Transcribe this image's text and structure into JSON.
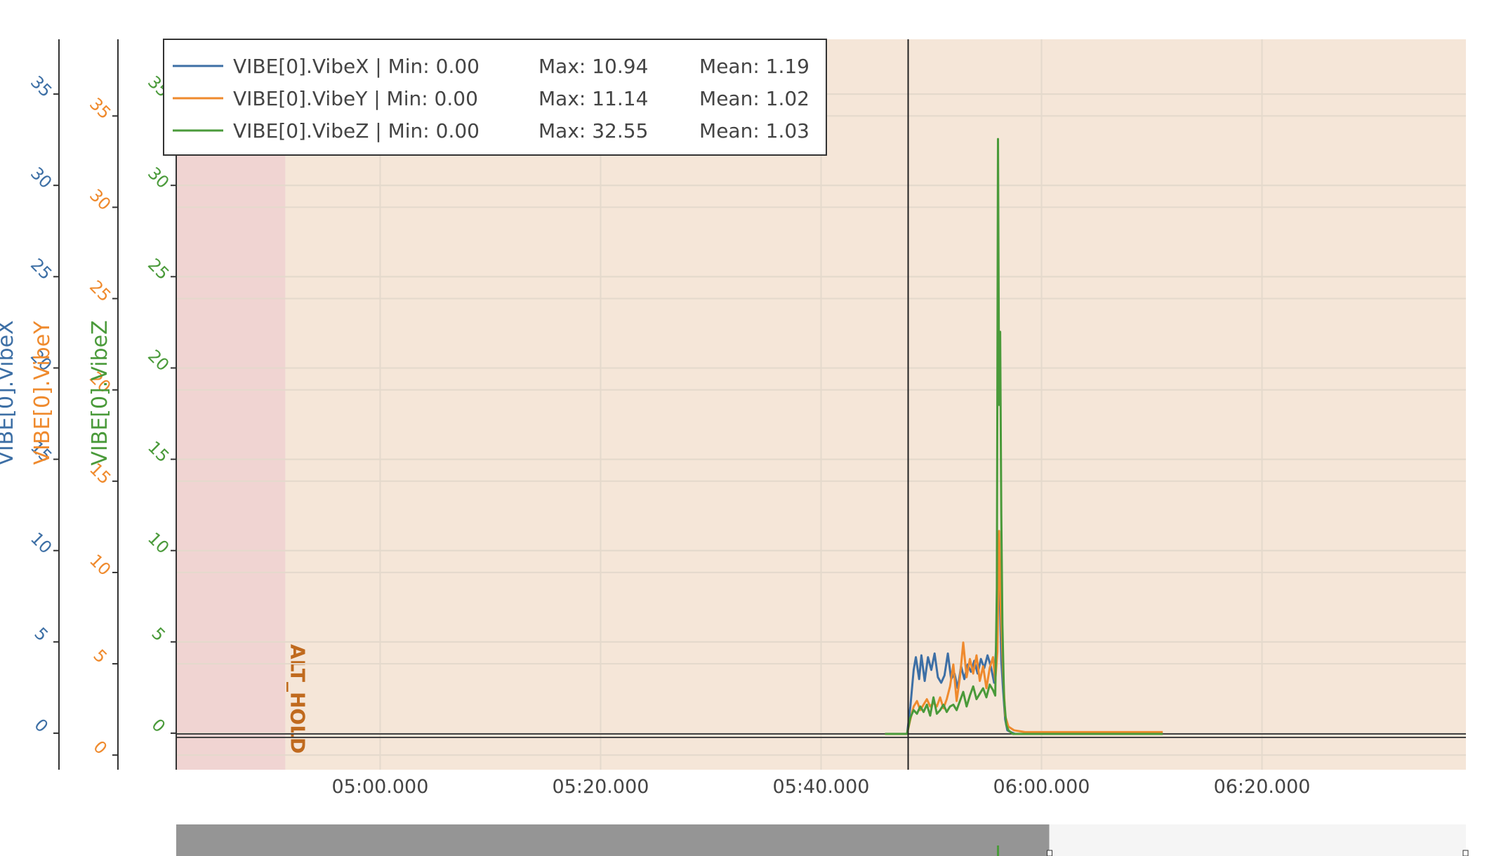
{
  "chart_data": {
    "type": "line",
    "x_range": [
      "04:41.500",
      "06:38.500"
    ],
    "x_ticks": [
      "05:00.000",
      "05:20.000",
      "05:40.000",
      "06:00.000",
      "06:20.000"
    ],
    "cursor_x": "05:47.900",
    "y_axes": [
      {
        "title": "VIBE[0].VibeX",
        "color": "#3d6fa5",
        "range": [
          -2.0,
          38.0
        ],
        "ticks": [
          "0",
          "5",
          "10",
          "15",
          "20",
          "25",
          "30",
          "35"
        ]
      },
      {
        "title": "VIBE[0].VibeY",
        "color": "#ef8a2d",
        "range": [
          -0.8,
          39.2
        ],
        "ticks": [
          "0",
          "5",
          "10",
          "15",
          "20",
          "25",
          "30",
          "35"
        ]
      },
      {
        "title": "VIBE[0].VibeZ",
        "color": "#4a9a3a",
        "range": [
          -2.0,
          38.0
        ],
        "ticks": [
          "0",
          "5",
          "10",
          "15",
          "20",
          "25",
          "30",
          "35"
        ]
      }
    ],
    "legend": [
      {
        "name": "VIBE[0].VibeX",
        "min": "Min: 0.00",
        "max": "Max: 10.94",
        "mean": "Mean: 1.19",
        "color": "#3d6fa5"
      },
      {
        "name": "VIBE[0].VibeY",
        "min": "Min: 0.00",
        "max": "Max: 11.14",
        "mean": "Mean: 1.02",
        "color": "#ef8a2d"
      },
      {
        "name": "VIBE[0].VibeZ",
        "min": "Min: 0.00",
        "max": "Max: 32.55",
        "mean": "Mean: 1.03",
        "color": "#4a9a3a"
      }
    ],
    "legend_position": "top-left",
    "grid": true,
    "mode_regions": [
      {
        "label": "",
        "start": "04:41.500",
        "end": "04:51.400",
        "color": "#f0d4d2"
      },
      {
        "label": "ALT_HOLD",
        "start": "04:51.400",
        "end": "06:38.500",
        "color": "#f5e6d8",
        "label_color": "#c06a1e"
      }
    ],
    "series": [
      {
        "name": "VIBE[0].VibeX",
        "color": "#3d6fa5",
        "x": [
          "05:45.800",
          "05:47.800",
          "05:48.100",
          "05:48.400",
          "05:48.600",
          "05:48.900",
          "05:49.100",
          "05:49.400",
          "05:49.700",
          "05:50.000",
          "05:50.300",
          "05:50.600",
          "05:50.900",
          "05:51.200",
          "05:51.500",
          "05:51.800",
          "05:52.100",
          "05:52.400",
          "05:52.700",
          "05:53.000",
          "05:53.300",
          "05:53.600",
          "05:53.900",
          "05:54.200",
          "05:54.500",
          "05:54.800",
          "05:55.100",
          "05:55.400",
          "05:55.700",
          "05:56.000",
          "05:56.100",
          "05:56.200",
          "05:56.350",
          "05:56.500",
          "05:56.700",
          "05:56.900",
          "05:57.200",
          "05:57.600",
          "05:58.500",
          "06:00.000",
          "06:03.000",
          "06:06.000",
          "06:11.000"
        ],
        "y": [
          0.0,
          0.0,
          1.5,
          3.5,
          4.2,
          3.0,
          4.3,
          2.9,
          4.2,
          3.5,
          4.4,
          3.1,
          2.8,
          3.2,
          4.4,
          3.0,
          3.3,
          2.5,
          3.7,
          3.0,
          3.8,
          3.4,
          4.0,
          3.3,
          4.1,
          3.6,
          4.3,
          3.7,
          2.8,
          6.0,
          10.9,
          8.0,
          4.0,
          2.5,
          0.8,
          0.2,
          0.1,
          0.0,
          0.0,
          0.0,
          0.0,
          0.0,
          0.0
        ]
      },
      {
        "name": "VIBE[0].VibeY",
        "color": "#ef8a2d",
        "x": [
          "05:45.800",
          "05:47.800",
          "05:48.100",
          "05:48.400",
          "05:48.700",
          "05:49.000",
          "05:49.300",
          "05:49.600",
          "05:49.900",
          "05:50.200",
          "05:50.500",
          "05:50.800",
          "05:51.100",
          "05:51.400",
          "05:51.700",
          "05:52.000",
          "05:52.300",
          "05:52.600",
          "05:52.900",
          "05:53.200",
          "05:53.500",
          "05:53.800",
          "05:54.100",
          "05:54.400",
          "05:54.700",
          "05:55.000",
          "05:55.300",
          "05:55.600",
          "05:55.800",
          "05:56.000",
          "05:56.150",
          "05:56.300",
          "05:56.500",
          "05:56.700",
          "05:57.000",
          "05:57.500",
          "05:58.500",
          "06:00.000",
          "06:05.000",
          "06:11.000"
        ],
        "y": [
          0.0,
          0.0,
          0.8,
          1.5,
          1.8,
          1.3,
          1.6,
          1.9,
          1.5,
          1.7,
          1.5,
          2.0,
          1.4,
          1.9,
          2.6,
          3.8,
          1.8,
          3.1,
          5.0,
          3.1,
          4.1,
          3.3,
          4.3,
          2.9,
          3.7,
          2.5,
          3.6,
          4.2,
          2.9,
          4.5,
          11.1,
          7.0,
          3.5,
          1.0,
          0.4,
          0.2,
          0.1,
          0.1,
          0.1,
          0.1
        ]
      },
      {
        "name": "VIBE[0].VibeZ",
        "color": "#4a9a3a",
        "x": [
          "05:45.800",
          "05:47.800",
          "05:48.100",
          "05:48.400",
          "05:48.700",
          "05:49.000",
          "05:49.300",
          "05:49.600",
          "05:49.900",
          "05:50.200",
          "05:50.500",
          "05:50.800",
          "05:51.100",
          "05:51.400",
          "05:51.700",
          "05:52.000",
          "05:52.300",
          "05:52.600",
          "05:52.900",
          "05:53.200",
          "05:53.500",
          "05:53.800",
          "05:54.100",
          "05:54.400",
          "05:54.700",
          "05:55.000",
          "05:55.300",
          "05:55.600",
          "05:55.800",
          "05:55.950",
          "05:56.050",
          "05:56.150",
          "05:56.250",
          "05:56.350",
          "05:56.450",
          "05:56.600",
          "05:56.800",
          "05:57.000",
          "05:57.400",
          "05:58.000",
          "06:00.000",
          "06:05.000",
          "06:11.000"
        ],
        "y": [
          0.0,
          0.0,
          0.9,
          1.3,
          1.1,
          1.5,
          1.2,
          1.6,
          1.0,
          2.0,
          1.1,
          1.3,
          1.6,
          1.2,
          1.5,
          1.6,
          1.3,
          1.8,
          2.3,
          1.5,
          2.1,
          2.6,
          1.9,
          2.2,
          2.5,
          2.0,
          2.7,
          2.4,
          2.1,
          8.0,
          32.55,
          18.0,
          22.0,
          12.0,
          6.0,
          2.0,
          0.5,
          0.2,
          0.0,
          0.0,
          0.0,
          0.0,
          0.0
        ]
      }
    ],
    "overview": {
      "selection_start": "04:41.500",
      "selection_end": "06:00.700",
      "spike_at": "05:56.050",
      "spike_color": "#4a9a3a"
    }
  }
}
